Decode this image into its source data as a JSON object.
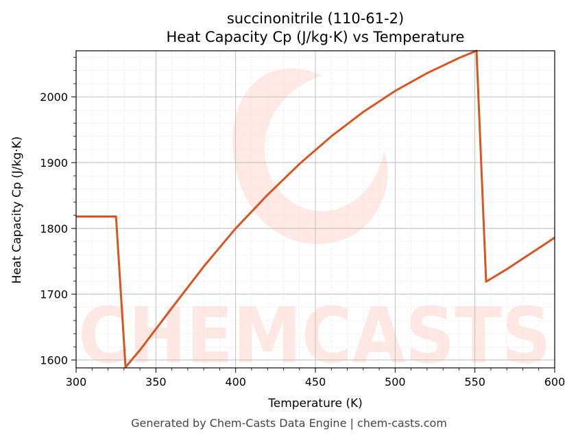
{
  "chart_data": {
    "type": "line",
    "title_line1": "succinonitrile (110-61-2)",
    "title_line2": "Heat Capacity Cp (J/kg·K) vs Temperature",
    "xlabel": "Temperature (K)",
    "ylabel": "Heat Capacity Cp (J/kg·K)",
    "xlim": [
      300,
      600
    ],
    "ylim": [
      1588,
      2070
    ],
    "x_ticks": [
      300,
      350,
      400,
      450,
      500,
      550,
      600
    ],
    "y_ticks": [
      1600,
      1700,
      1800,
      1900,
      2000
    ],
    "grid": true,
    "line_color": "#d9541e",
    "series": [
      {
        "x": [
          300,
          325,
          331,
          340,
          360,
          380,
          400,
          420,
          440,
          460,
          480,
          500,
          520,
          540,
          551,
          557,
          570,
          585,
          600
        ],
        "y": [
          1818,
          1818,
          1589,
          1615,
          1679,
          1742,
          1800,
          1851,
          1898,
          1940,
          1977,
          2009,
          2036,
          2059,
          2070,
          1719,
          1738,
          1762,
          1786
        ]
      }
    ],
    "watermark": "CHEMCASTS"
  },
  "footer": "Generated by Chem-Casts Data Engine | chem-casts.com"
}
